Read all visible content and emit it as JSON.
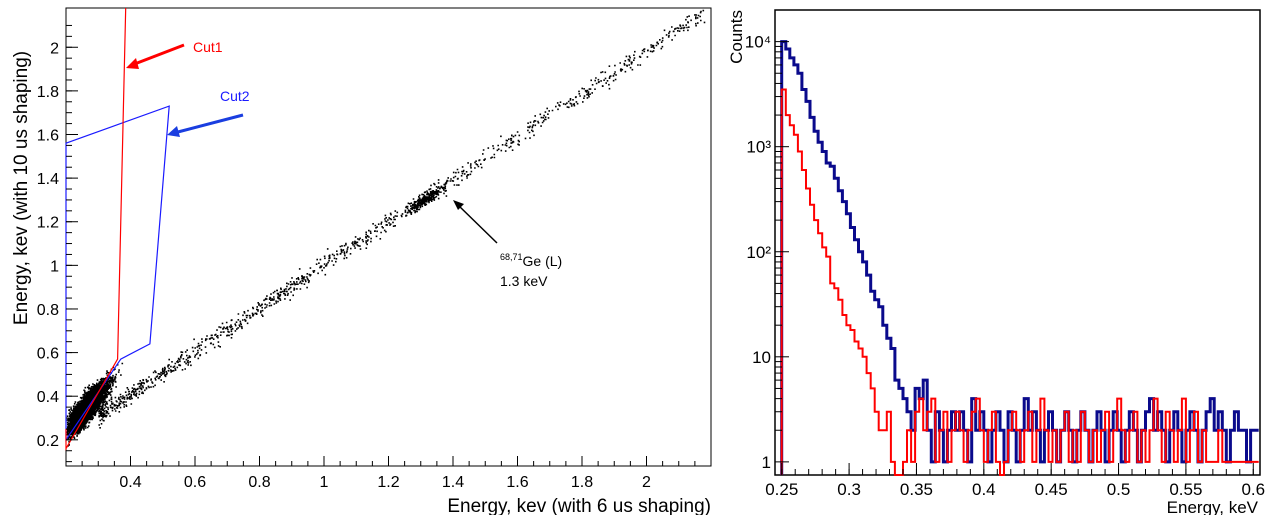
{
  "chart_data": [
    {
      "type": "scatter",
      "xlabel": "Energy, kev (with 6 us shaping)",
      "ylabel": "Energy, kev (with 10 us shaping)",
      "xlim": [
        0.2,
        2.2
      ],
      "ylim": [
        0.08,
        2.18
      ],
      "xticks": [
        "0.4",
        "0.6",
        "0.8",
        "1",
        "1.2",
        "1.4",
        "1.6",
        "1.8",
        "2"
      ],
      "yticks": [
        "0.2",
        "0.4",
        "0.6",
        "0.8",
        "1",
        "1.2",
        "1.4",
        "1.6",
        "1.8",
        "2"
      ],
      "annotations": {
        "cut1": "Cut1",
        "cut2": "Cut2",
        "peak_label_sup": "68,71",
        "peak_label": "Ge (L)",
        "peak_energy": "1.3 keV"
      },
      "cut1_polygon": [
        [
          0.2,
          0.25
        ],
        [
          0.2,
          0.16
        ],
        [
          0.36,
          0.57
        ],
        [
          0.385,
          2.18
        ]
      ],
      "cut2_polygon": [
        [
          0.2,
          0.2
        ],
        [
          0.2,
          1.56
        ],
        [
          0.52,
          1.73
        ],
        [
          0.46,
          0.64
        ],
        [
          0.37,
          0.57
        ]
      ],
      "colors": {
        "points": "#000000",
        "cut1": "#ff0000",
        "cut2": "#1a1aff",
        "cut1_arrow": "#ff0000",
        "cut2_arrow": "#1a3ee0",
        "annotation_arrow": "#000000"
      }
    },
    {
      "type": "line",
      "xlabel": "Energy, keV",
      "ylabel": "Counts",
      "xlim": [
        0.245,
        0.605
      ],
      "ylim": [
        0.75,
        20000
      ],
      "log_y": true,
      "xticks": [
        "0.25",
        "0.3",
        "0.35",
        "0.4",
        "0.45",
        "0.5",
        "0.55",
        "0.6"
      ],
      "yticks": [
        "1",
        "10",
        "10²",
        "10³",
        "10⁴"
      ],
      "bin_start": 0.25,
      "bin_width": 0.003,
      "series": [
        {
          "color": "#0a0a8c",
          "values": [
            10000,
            8500,
            7000,
            6000,
            5000,
            3500,
            2700,
            1900,
            1400,
            1100,
            900,
            700,
            650,
            500,
            380,
            300,
            230,
            170,
            130,
            100,
            80,
            60,
            42,
            35,
            30,
            20,
            15,
            12,
            6,
            5,
            4,
            3,
            2,
            5,
            4,
            6,
            2,
            1,
            3,
            2,
            1,
            2,
            3,
            2,
            3,
            2,
            1,
            4,
            2,
            3,
            2,
            1,
            2,
            3,
            2,
            1,
            3,
            2,
            1,
            2,
            4,
            2,
            3,
            2,
            1,
            2,
            3,
            2,
            1,
            2,
            3,
            2,
            1,
            2,
            3,
            2,
            1,
            2,
            3,
            2,
            1,
            2,
            3,
            2,
            1,
            2,
            3,
            2,
            1,
            2,
            3,
            4,
            2,
            3,
            2,
            1,
            2,
            3,
            2,
            1,
            2,
            3,
            2,
            1,
            2,
            3,
            4,
            2,
            3,
            2,
            1,
            2,
            3,
            2,
            2,
            1,
            2,
            2
          ]
        },
        {
          "color": "#ff0000",
          "values": [
            3500,
            2000,
            1600,
            1300,
            900,
            600,
            400,
            280,
            200,
            150,
            110,
            90,
            50,
            45,
            35,
            25,
            20,
            18,
            14,
            12,
            10,
            7,
            5,
            3,
            2,
            2,
            3,
            1,
            0.5,
            0.5,
            1,
            2,
            1,
            3,
            4,
            2,
            3,
            4,
            1,
            2,
            3,
            1,
            2,
            3,
            2,
            1,
            2,
            3,
            4,
            2,
            1,
            2,
            3,
            1,
            0.5,
            1,
            2,
            3,
            2,
            1,
            2,
            3,
            1,
            2,
            4,
            2,
            1,
            2,
            1,
            2,
            3,
            1,
            2,
            1,
            3,
            2,
            1,
            2,
            1,
            2,
            3,
            1,
            2,
            4,
            2,
            1,
            2,
            3,
            1,
            2,
            1,
            2,
            4,
            2,
            1,
            3,
            2,
            1,
            2,
            4,
            1,
            2,
            3,
            1,
            2,
            1,
            1,
            1,
            2,
            1,
            1,
            1,
            1,
            1,
            1,
            1,
            1,
            1
          ]
        }
      ]
    }
  ]
}
